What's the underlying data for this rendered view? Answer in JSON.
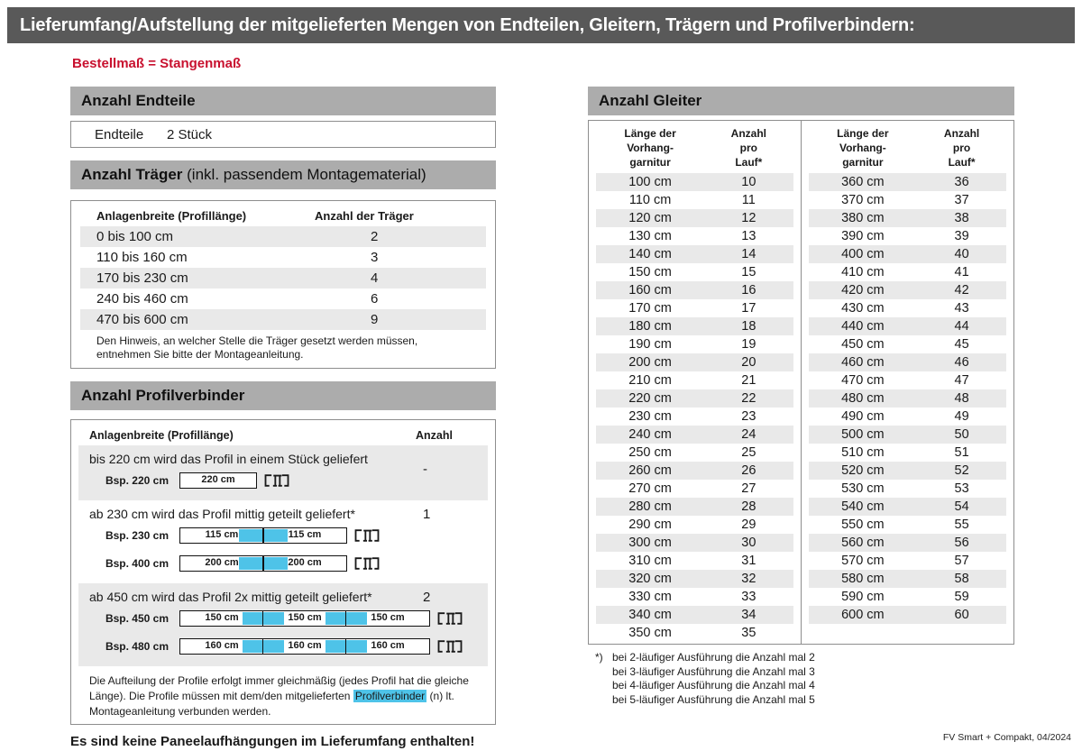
{
  "page": {
    "title": "Lieferumfang/Aufstellung der mitgelieferten Mengen von Endteilen, Gleitern, Trägern und Profilverbindern:",
    "subtitle": "Bestellmaß = Stangenmaß",
    "footer": "FV Smart + Compakt, 04/2024"
  },
  "colors": {
    "title_bar_gray": "#595959",
    "section_bar_gray": "#acacac",
    "row_stripe_gray": "#e9e9e9",
    "accent_blue": "#4ec3e8",
    "accent_red": "#c8102e"
  },
  "endteile": {
    "header": "Anzahl Endteile",
    "label": "Endteile",
    "value": "2 Stück"
  },
  "traeger": {
    "header_bold": "Anzahl Träger",
    "header_rest": " (inkl. passendem Montagematerial)",
    "col1": "Anlagenbreite (Profillänge)",
    "col2": "Anzahl der Träger",
    "rows": [
      {
        "range": "0 bis 100 cm",
        "count": "2"
      },
      {
        "range": "110 bis 160 cm",
        "count": "3"
      },
      {
        "range": "170 bis 230 cm",
        "count": "4"
      },
      {
        "range": "240 bis 460 cm",
        "count": "6"
      },
      {
        "range": "470 bis 600 cm",
        "count": "9"
      }
    ],
    "note": "Den Hinweis, an welcher Stelle die Träger gesetzt werden müssen, entnehmen Sie bitte der Montageanleitung."
  },
  "profilverbinder": {
    "header": "Anzahl Profilverbinder",
    "col1": "Anlagenbreite (Profillänge)",
    "col2": "Anzahl",
    "sections": [
      {
        "text": "bis 220 cm wird das Profil in einem Stück geliefert",
        "count": "-",
        "shaded": true,
        "examples": [
          {
            "label": "Bsp. 220 cm",
            "segments": [
              "220 cm"
            ]
          }
        ]
      },
      {
        "text": "ab 230 cm wird das Profil mittig geteilt geliefert*",
        "count": "1",
        "shaded": false,
        "examples": [
          {
            "label": "Bsp. 230 cm",
            "segments": [
              "115 cm",
              "115 cm"
            ]
          },
          {
            "label": "Bsp. 400 cm",
            "segments": [
              "200 cm",
              "200 cm"
            ]
          }
        ]
      },
      {
        "text": "ab 450 cm wird das Profil 2x mittig geteilt geliefert*",
        "count": "2",
        "shaded": true,
        "examples": [
          {
            "label": "Bsp. 450 cm",
            "segments": [
              "150 cm",
              "150 cm",
              "150 cm"
            ]
          },
          {
            "label": "Bsp. 480 cm",
            "segments": [
              "160 cm",
              "160 cm",
              "160 cm"
            ]
          }
        ]
      }
    ],
    "note_parts": {
      "before": "Die Aufteilung der Profile erfolgt immer gleichmäßig (jedes Profil hat die gleiche Länge). Die Profile müssen mit dem/den mitgelieferten ",
      "highlight": "Profilverbinder",
      "after": " (n) lt. Montageanleitung verbunden werden."
    }
  },
  "no_panel_note": "Es sind keine Paneelaufhängungen im Lieferumfang enthalten!",
  "gleiter": {
    "header": "Anzahl Gleiter",
    "col1_lines": [
      "Länge der",
      "Vorhang-",
      "garnitur"
    ],
    "col2_lines": [
      "Anzahl",
      "pro",
      "Lauf*"
    ],
    "left_rows": [
      [
        "100 cm",
        "10"
      ],
      [
        "110 cm",
        "11"
      ],
      [
        "120 cm",
        "12"
      ],
      [
        "130 cm",
        "13"
      ],
      [
        "140 cm",
        "14"
      ],
      [
        "150 cm",
        "15"
      ],
      [
        "160 cm",
        "16"
      ],
      [
        "170 cm",
        "17"
      ],
      [
        "180 cm",
        "18"
      ],
      [
        "190 cm",
        "19"
      ],
      [
        "200 cm",
        "20"
      ],
      [
        "210 cm",
        "21"
      ],
      [
        "220 cm",
        "22"
      ],
      [
        "230 cm",
        "23"
      ],
      [
        "240 cm",
        "24"
      ],
      [
        "250 cm",
        "25"
      ],
      [
        "260 cm",
        "26"
      ],
      [
        "270 cm",
        "27"
      ],
      [
        "280 cm",
        "28"
      ],
      [
        "290 cm",
        "29"
      ],
      [
        "300 cm",
        "30"
      ],
      [
        "310 cm",
        "31"
      ],
      [
        "320 cm",
        "32"
      ],
      [
        "330 cm",
        "33"
      ],
      [
        "340 cm",
        "34"
      ],
      [
        "350 cm",
        "35"
      ]
    ],
    "right_rows": [
      [
        "360 cm",
        "36"
      ],
      [
        "370 cm",
        "37"
      ],
      [
        "380 cm",
        "38"
      ],
      [
        "390 cm",
        "39"
      ],
      [
        "400 cm",
        "40"
      ],
      [
        "410 cm",
        "41"
      ],
      [
        "420 cm",
        "42"
      ],
      [
        "430 cm",
        "43"
      ],
      [
        "440 cm",
        "44"
      ],
      [
        "450 cm",
        "45"
      ],
      [
        "460 cm",
        "46"
      ],
      [
        "470 cm",
        "47"
      ],
      [
        "480 cm",
        "48"
      ],
      [
        "490 cm",
        "49"
      ],
      [
        "500 cm",
        "50"
      ],
      [
        "510 cm",
        "51"
      ],
      [
        "520 cm",
        "52"
      ],
      [
        "530 cm",
        "53"
      ],
      [
        "540 cm",
        "54"
      ],
      [
        "550 cm",
        "55"
      ],
      [
        "560 cm",
        "56"
      ],
      [
        "570 cm",
        "57"
      ],
      [
        "580 cm",
        "58"
      ],
      [
        "590 cm",
        "59"
      ],
      [
        "600 cm",
        "60"
      ]
    ],
    "footnote_marker": "*)",
    "footnotes": [
      "bei 2-läufiger Ausführung die Anzahl mal 2",
      "bei 3-läufiger Ausführung die Anzahl mal 3",
      "bei 4-läufiger Ausführung die Anzahl mal 4",
      "bei 5-läufiger Ausführung die Anzahl mal 5"
    ]
  }
}
